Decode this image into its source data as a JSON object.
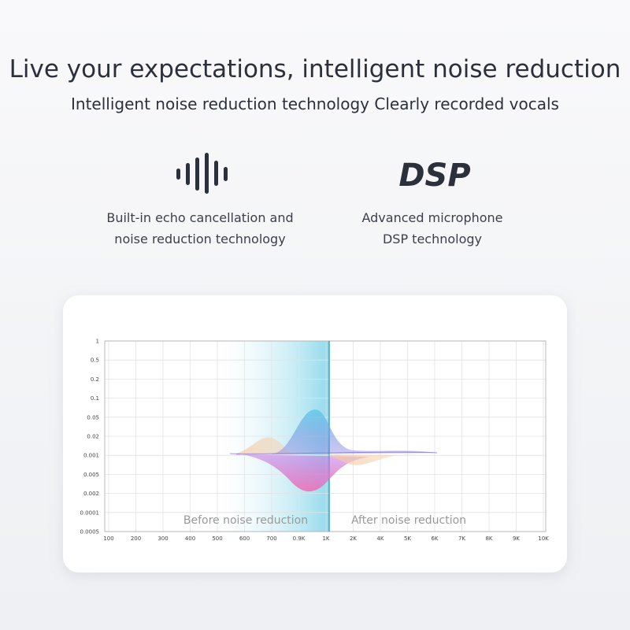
{
  "header": {
    "title": "Live your expectations, intelligent noise reduction",
    "subtitle": "Intelligent noise reduction technology Clearly recorded vocals"
  },
  "features": [
    {
      "lines": [
        "Built-in echo cancellation and",
        "noise reduction technology"
      ]
    },
    {
      "icon_text": "DSP",
      "lines": [
        "Advanced microphone",
        "DSP technology"
      ]
    }
  ],
  "chart": {
    "y_labels": [
      "1",
      "0.5",
      "0.2",
      "0.1",
      "0.05",
      "0.02",
      "0.001",
      "0.005",
      "0.002",
      "0.0001",
      "0.0005"
    ],
    "x_labels": [
      "100",
      "200",
      "300",
      "400",
      "500",
      "600",
      "700",
      "0.9K",
      "1K",
      "2K",
      "4K",
      "5K",
      "6K",
      "7K",
      "8K",
      "9K",
      "10K"
    ],
    "before_label": "Before noise reduction",
    "after_label": "After noise reduction"
  }
}
